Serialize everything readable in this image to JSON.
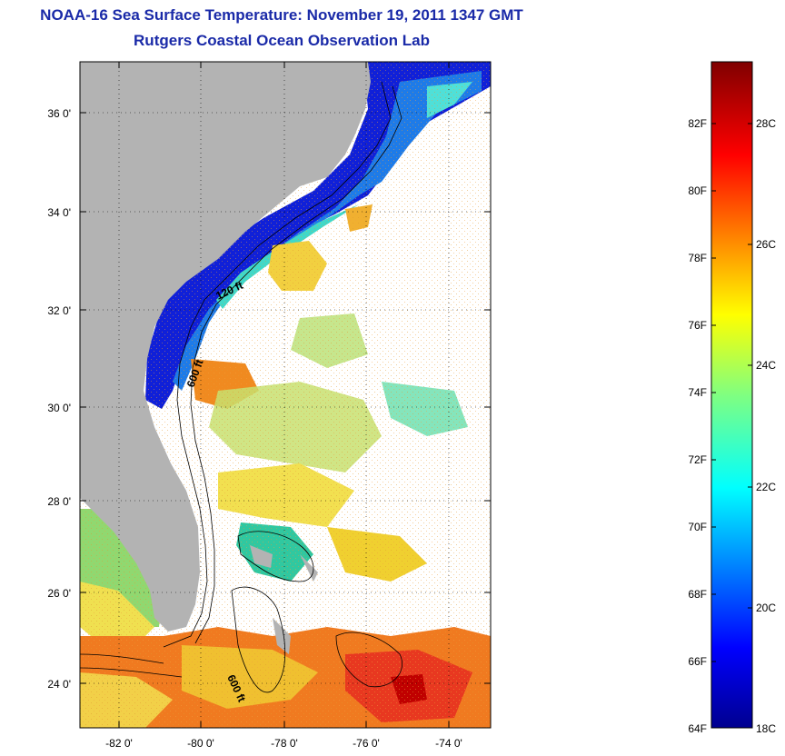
{
  "title": {
    "line1": "NOAA-16 Sea Surface Temperature:  November 19, 2011 1347 GMT",
    "line2": "Rutgers Coastal Ocean Observation Lab"
  },
  "map": {
    "lat_labels": [
      "36 0'",
      "34 0'",
      "32 0'",
      "30 0'",
      "28 0'",
      "26 0'",
      "24 0'"
    ],
    "lon_labels": [
      "-82 0'",
      "-80 0'",
      "-78 0'",
      "-76 0'",
      "-74 0'"
    ],
    "contour_labels": [
      "120 ft",
      "600 ft",
      "600 ft"
    ],
    "colors": {
      "land": "#b3b3b3",
      "cloud": "#ffffff",
      "frame": "#000000"
    }
  },
  "colorbar": {
    "fahrenheit_labels": [
      "82F",
      "80F",
      "78F",
      "76F",
      "74F",
      "72F",
      "70F",
      "68F",
      "66F",
      "64F"
    ],
    "celsius_labels": [
      "28C",
      "26C",
      "24C",
      "22C",
      "20C",
      "18C"
    ],
    "range_c": [
      18,
      29.5
    ],
    "colormap": "jet"
  }
}
